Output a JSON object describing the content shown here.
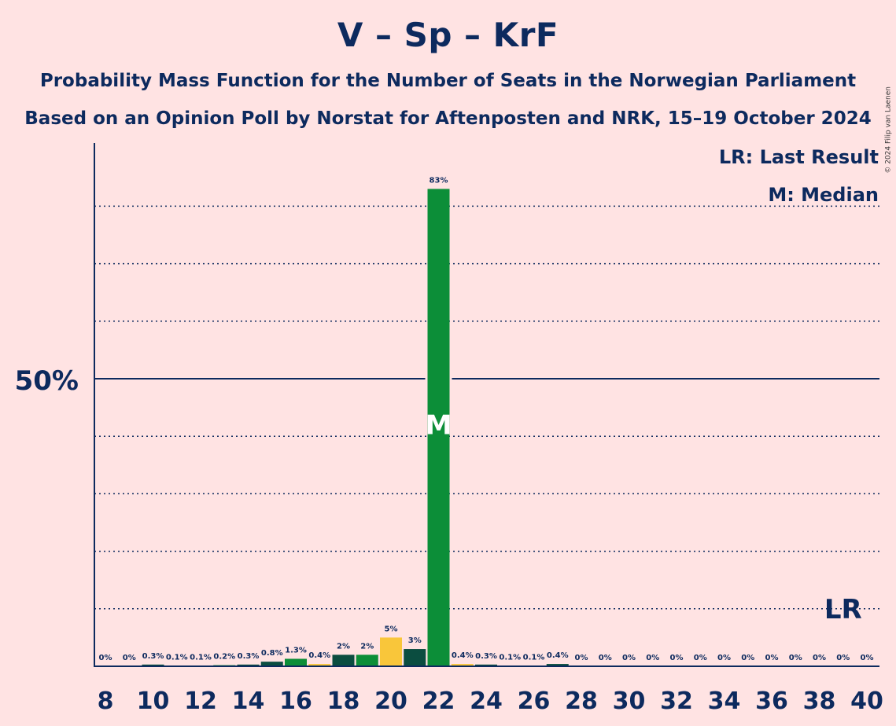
{
  "title": "V – Sp – KrF",
  "subtitle_1": "Probability Mass Function for the Number of Seats in the Norwegian Parliament",
  "subtitle_2": "Based on an Opinion Poll by Norstat for Aftenposten and NRK, 15–19 October 2024",
  "copyright": "© 2024 Filip van Laenen",
  "legend": {
    "last_result": "LR: Last Result",
    "median": "M: Median"
  },
  "colors": {
    "background": "#FFE3E3",
    "text": "#0D2A5E",
    "dark_green": "#0B4D40",
    "green": "#0C8E38",
    "yellow": "#F9C63A"
  },
  "chart_data": {
    "type": "bar",
    "x": [
      8,
      9,
      10,
      11,
      12,
      13,
      14,
      15,
      16,
      17,
      18,
      19,
      20,
      21,
      22,
      23,
      24,
      25,
      26,
      27,
      28,
      29,
      30,
      31,
      32,
      33,
      34,
      35,
      36,
      37,
      38,
      39,
      40
    ],
    "values": [
      0,
      0,
      0.3,
      0.1,
      0.1,
      0.2,
      0.3,
      0.8,
      1.3,
      0.4,
      2,
      2,
      5,
      3,
      83,
      0.4,
      0.3,
      0.1,
      0.1,
      0.4,
      0,
      0,
      0,
      0,
      0,
      0,
      0,
      0,
      0,
      0,
      0,
      0,
      0
    ],
    "labels": [
      "0%",
      "0%",
      "0.3%",
      "0.1%",
      "0.1%",
      "0.2%",
      "0.3%",
      "0.8%",
      "1.3%",
      "0.4%",
      "2%",
      "2%",
      "5%",
      "3%",
      "83%",
      "0.4%",
      "0.3%",
      "0.1%",
      "0.1%",
      "0.4%",
      "0%",
      "0%",
      "0%",
      "0%",
      "0%",
      "0%",
      "0%",
      "0%",
      "0%",
      "0%",
      "0%",
      "0%",
      "0%"
    ],
    "bar_colors": [
      "dark_green",
      "green",
      "dark_green",
      "green",
      "dark_green",
      "green",
      "dark_green",
      "dark_green",
      "green",
      "yellow",
      "dark_green",
      "green",
      "yellow",
      "dark_green",
      "green",
      "yellow",
      "dark_green",
      "green",
      "dark_green",
      "dark_green",
      "green",
      "dark_green",
      "green",
      "dark_green",
      "green",
      "dark_green",
      "green",
      "dark_green",
      "green",
      "dark_green",
      "green",
      "dark_green",
      "green"
    ],
    "xtick_labels": [
      "8",
      "10",
      "12",
      "14",
      "16",
      "18",
      "20",
      "22",
      "24",
      "26",
      "28",
      "30",
      "32",
      "34",
      "36",
      "38",
      "40"
    ],
    "ylabel_tick": "50%",
    "ylim": [
      0,
      90
    ],
    "y_gridlines": [
      10,
      20,
      30,
      40,
      60,
      70,
      80
    ],
    "y_major_line": 50,
    "median": 22,
    "median_label": "M",
    "last_result": 39,
    "last_result_label": "LR"
  }
}
